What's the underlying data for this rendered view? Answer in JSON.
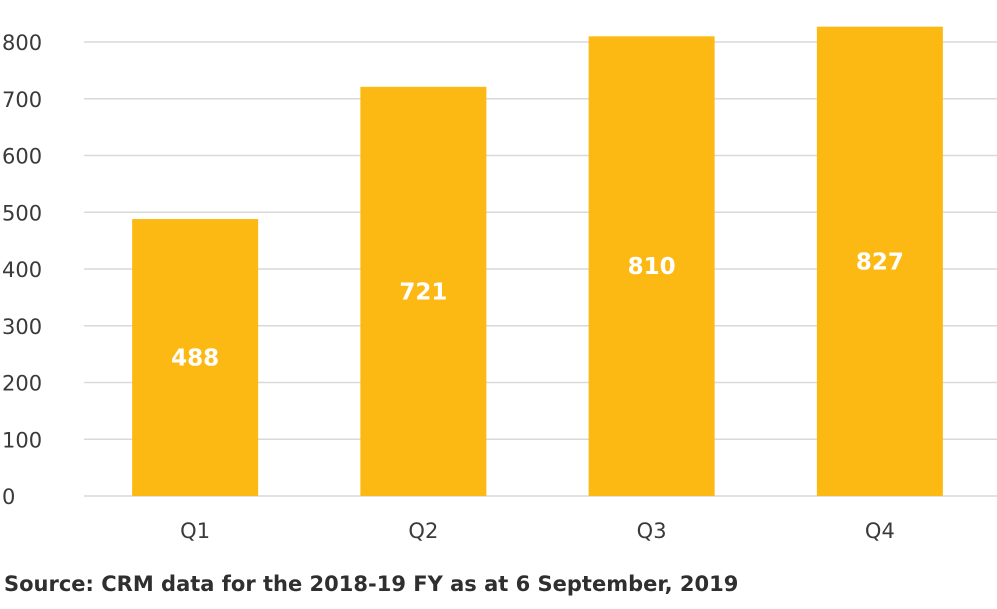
{
  "chart_data": {
    "type": "bar",
    "categories": [
      "Q1",
      "Q2",
      "Q3",
      "Q4"
    ],
    "values": [
      488,
      721,
      810,
      827
    ],
    "data_labels": [
      "488",
      "721",
      "810",
      "827"
    ],
    "ylim": [
      0,
      850
    ],
    "yticks": [
      0,
      100,
      200,
      300,
      400,
      500,
      600,
      700,
      800
    ],
    "grid": true,
    "bar_color": "#FDB913",
    "label_color": "#FFFFFF",
    "title": "",
    "xlabel": "",
    "ylabel": ""
  },
  "source_note": "Source: CRM data for the 2018-19 FY as at 6 September, 2019"
}
